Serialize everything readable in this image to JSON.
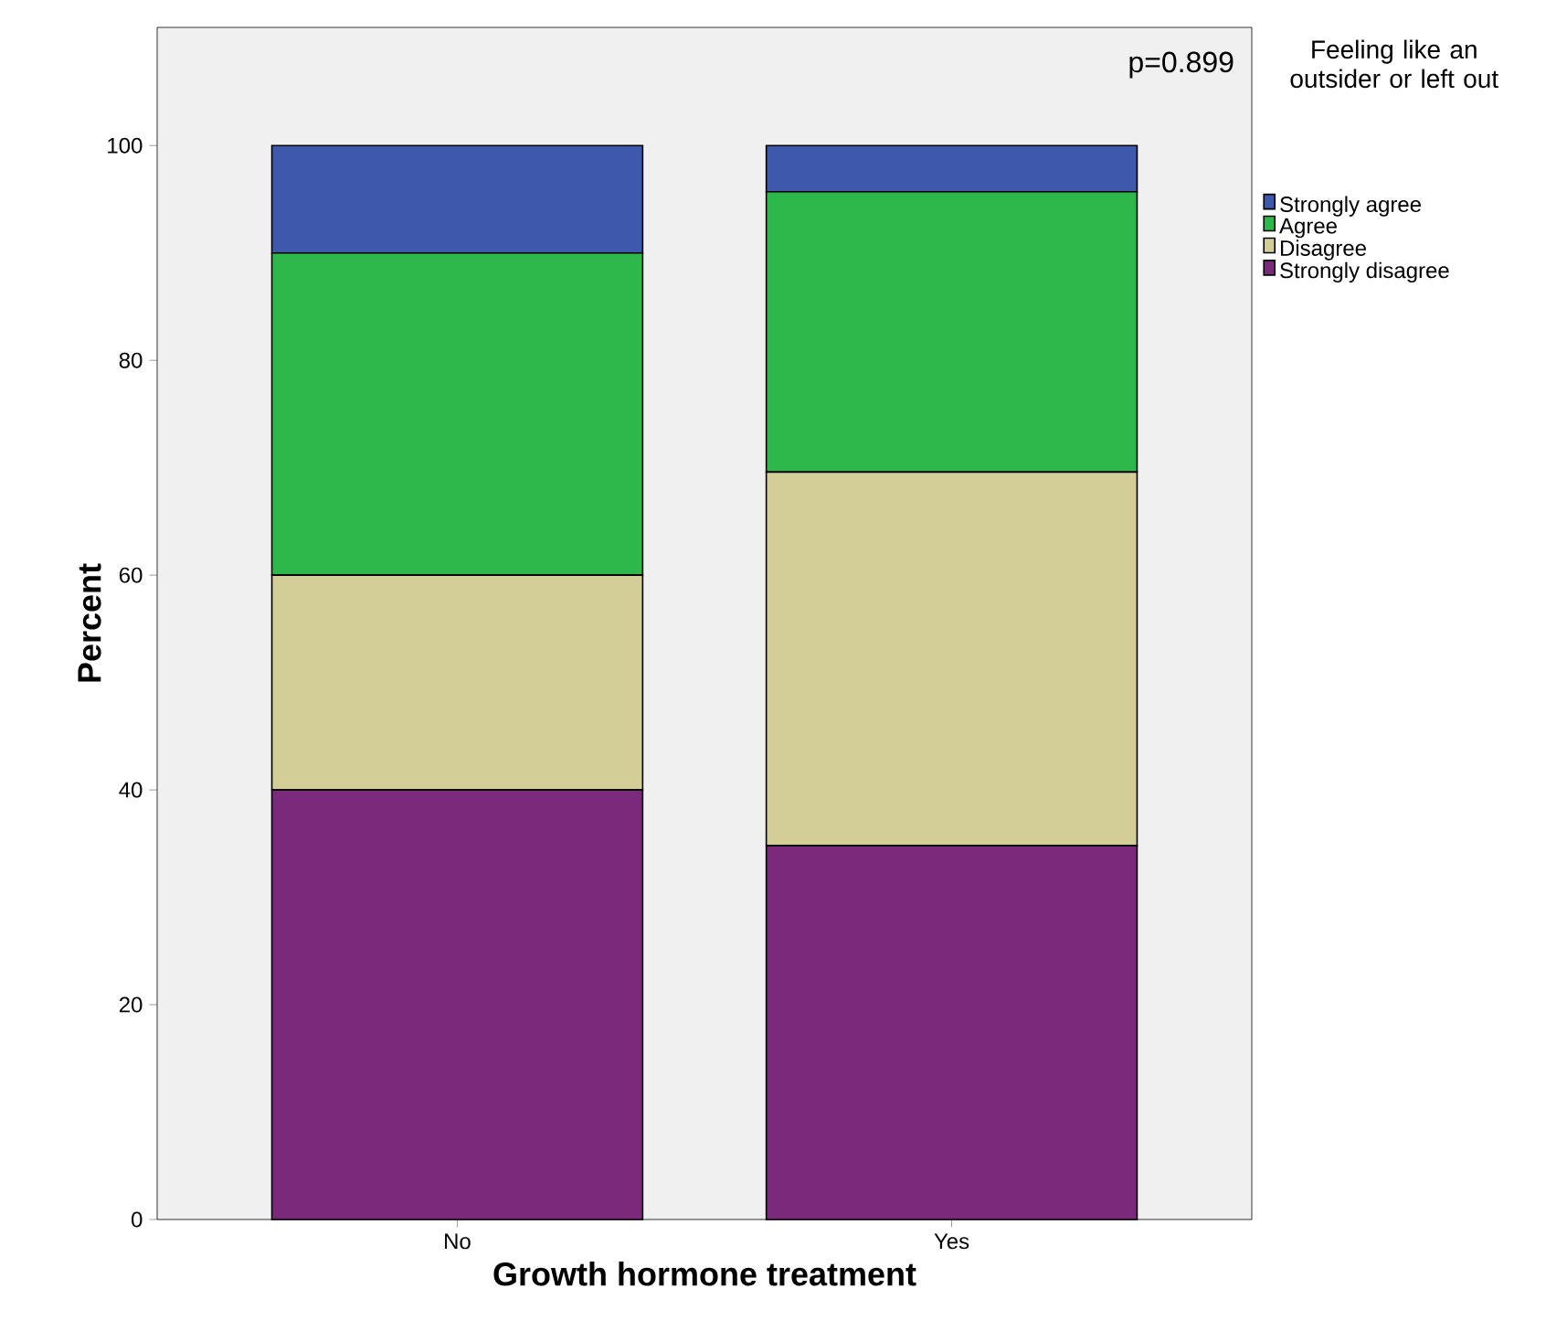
{
  "chart_data": {
    "type": "bar",
    "stacked": true,
    "xlabel": "Growth hormone treatment",
    "ylabel": "Percent",
    "legend_title": "Feeling like an outsider or left out",
    "categories": [
      "No",
      "Yes"
    ],
    "series": [
      {
        "name": "Strongly disagree",
        "color": "#7b2a7b",
        "values": [
          40,
          34.8
        ]
      },
      {
        "name": "Disagree",
        "color": "#d3ce97",
        "values": [
          20,
          34.8
        ]
      },
      {
        "name": "Agree",
        "color": "#2eb84b",
        "values": [
          30,
          26.1
        ]
      },
      {
        "name": "Strongly agree",
        "color": "#3e58ac",
        "values": [
          10,
          4.3
        ]
      }
    ],
    "ylim": [
      0,
      111
    ],
    "yticks": [
      0,
      20,
      40,
      60,
      80,
      100
    ],
    "grid": false,
    "legend": "right",
    "annotations": [
      "p=0.899"
    ]
  }
}
